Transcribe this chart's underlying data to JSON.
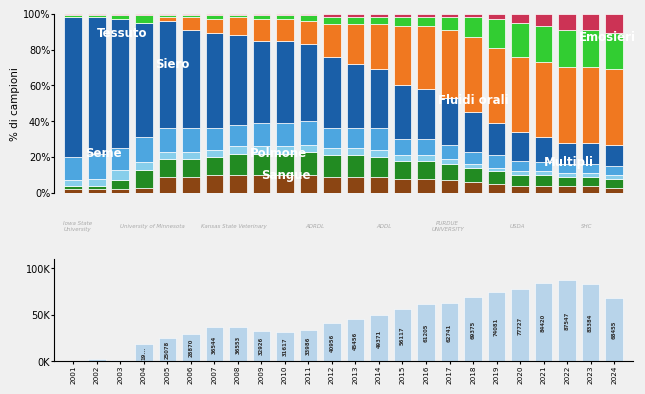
{
  "years": [
    2001,
    2002,
    2003,
    2004,
    2005,
    2006,
    2007,
    2008,
    2009,
    2010,
    2011,
    2012,
    2013,
    2014,
    2015,
    2016,
    2017,
    2018,
    2019,
    2020,
    2021,
    2022,
    2023,
    2024
  ],
  "counts": [
    500,
    3000,
    1500,
    19000,
    25078,
    28870,
    36544,
    36553,
    32926,
    31617,
    33986,
    40956,
    45456,
    49371,
    56117,
    61205,
    62741,
    69375,
    74081,
    77727,
    84420,
    87547,
    83384,
    68455
  ],
  "pct_data": {
    "Sangue": [
      2,
      2,
      2,
      3,
      9,
      9,
      10,
      10,
      10,
      10,
      10,
      9,
      9,
      9,
      8,
      8,
      7,
      6,
      5,
      4,
      4,
      4,
      4,
      3
    ],
    "Polmone": [
      2,
      2,
      5,
      10,
      10,
      10,
      10,
      12,
      12,
      12,
      13,
      12,
      12,
      11,
      10,
      10,
      9,
      8,
      7,
      6,
      6,
      5,
      5,
      5
    ],
    "Seme": [
      3,
      4,
      6,
      4,
      4,
      4,
      4,
      4,
      4,
      4,
      4,
      4,
      4,
      4,
      3,
      3,
      3,
      2,
      2,
      2,
      2,
      2,
      2,
      2
    ],
    "Siero": [
      13,
      14,
      12,
      14,
      13,
      13,
      12,
      12,
      13,
      13,
      13,
      11,
      11,
      12,
      9,
      9,
      8,
      7,
      7,
      6,
      5,
      5,
      5,
      5
    ],
    "Tessuto": [
      78,
      76,
      72,
      64,
      60,
      55,
      53,
      50,
      46,
      46,
      43,
      40,
      36,
      33,
      30,
      28,
      26,
      22,
      18,
      16,
      14,
      12,
      12,
      12
    ],
    "Fluidi orali": [
      0,
      0,
      0,
      0,
      2,
      7,
      8,
      10,
      12,
      12,
      13,
      18,
      22,
      25,
      33,
      35,
      38,
      42,
      42,
      42,
      42,
      42,
      42,
      42
    ],
    "Multipli": [
      1,
      1,
      2,
      4,
      1,
      1,
      2,
      1,
      2,
      2,
      3,
      4,
      4,
      4,
      5,
      5,
      7,
      11,
      16,
      19,
      20,
      21,
      21,
      20
    ],
    "Emosieri": [
      1,
      1,
      1,
      1,
      1,
      1,
      1,
      1,
      1,
      1,
      1,
      2,
      2,
      2,
      2,
      2,
      2,
      2,
      3,
      5,
      7,
      9,
      9,
      11
    ]
  },
  "colors": {
    "Sangue": "#8b4513",
    "Polmone": "#228b22",
    "Seme": "#87ceeb",
    "Siero": "#4da6e0",
    "Tessuto": "#1a5fa8",
    "Fluidi orali": "#f07820",
    "Multipli": "#32cd32",
    "Emosieri": "#cc3355"
  },
  "bar_color": "#b8d4ea",
  "ylabel_top": "% di campioni",
  "yticks_top": [
    0,
    20,
    40,
    60,
    80,
    100
  ],
  "ytick_labels_top": [
    "0%",
    "20%",
    "40%",
    "60%",
    "80%",
    "100%"
  ],
  "yticks_bottom": [
    0,
    50000,
    100000
  ],
  "ytick_labels_bottom": [
    "0K",
    "50K",
    "100K"
  ],
  "background_color": "#f0f0f0",
  "label_configs": [
    [
      "Tessuto",
      2002.0,
      89,
      "left"
    ],
    [
      "Siero",
      2004.5,
      72,
      "left"
    ],
    [
      "Seme",
      2001.5,
      22,
      "left"
    ],
    [
      "Polmone",
      2008.5,
      22,
      "left"
    ],
    [
      "Sangue",
      2009.0,
      10,
      "left"
    ],
    [
      "Fluidi orali",
      2016.5,
      52,
      "left"
    ],
    [
      "Multipli",
      2021.0,
      17,
      "left"
    ],
    [
      "Emosieri",
      2022.5,
      87,
      "left"
    ]
  ]
}
